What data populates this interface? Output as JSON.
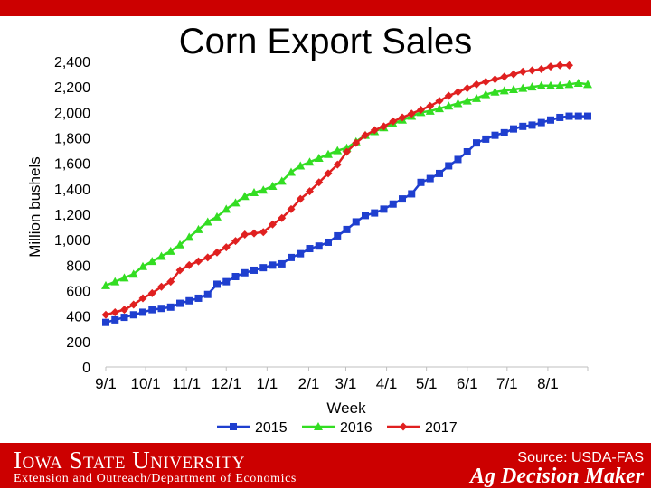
{
  "header": {
    "title": "Corn Export Sales"
  },
  "footer": {
    "university": "Iowa State University",
    "department": "Extension and Outreach/Department of Economics",
    "source": "Source: USDA-FAS",
    "brand": "Ag Decision Maker"
  },
  "colors": {
    "banner": "#cc0000",
    "s2015": "#1f3fcf",
    "s2016": "#33dd22",
    "s2017": "#e02020"
  },
  "chart_data": {
    "type": "line",
    "title": "Corn Export Sales",
    "xlabel": "Week",
    "ylabel": "Million bushels",
    "ylim": [
      0,
      2400
    ],
    "yticks": [
      0,
      200,
      400,
      600,
      800,
      1000,
      1200,
      1400,
      1600,
      1800,
      2000,
      2200,
      2400
    ],
    "ytick_labels": [
      "0",
      "200",
      "400",
      "600",
      "800",
      "1,000",
      "1,200",
      "1,400",
      "1,600",
      "1,800",
      "2,000",
      "2,200",
      "2,400"
    ],
    "xtick_labels": [
      "9/1",
      "10/1",
      "11/1",
      "12/1",
      "1/1",
      "2/1",
      "3/1",
      "4/1",
      "5/1",
      "6/1",
      "7/1",
      "8/1"
    ],
    "xtick_weeks": [
      0,
      4.3,
      8.7,
      13,
      17.4,
      21.9,
      25.9,
      30.3,
      34.6,
      39,
      43.3,
      47.7
    ],
    "xlim": [
      0,
      52
    ],
    "grid": false,
    "legend_position": "bottom",
    "series": [
      {
        "name": "2015",
        "marker": "square",
        "values": [
          350,
          370,
          390,
          410,
          430,
          450,
          460,
          470,
          500,
          520,
          540,
          570,
          650,
          670,
          710,
          740,
          760,
          780,
          800,
          810,
          860,
          890,
          930,
          950,
          980,
          1030,
          1080,
          1140,
          1190,
          1210,
          1240,
          1280,
          1320,
          1360,
          1450,
          1480,
          1520,
          1580,
          1630,
          1690,
          1760,
          1790,
          1820,
          1840,
          1870,
          1890,
          1900,
          1920,
          1940,
          1960,
          1970,
          1970,
          1970
        ]
      },
      {
        "name": "2016",
        "marker": "triangle",
        "values": [
          640,
          670,
          700,
          730,
          790,
          830,
          870,
          910,
          960,
          1020,
          1080,
          1140,
          1180,
          1240,
          1290,
          1340,
          1370,
          1390,
          1420,
          1460,
          1530,
          1580,
          1610,
          1640,
          1670,
          1700,
          1720,
          1770,
          1820,
          1850,
          1880,
          1910,
          1940,
          1970,
          2000,
          2010,
          2030,
          2050,
          2070,
          2090,
          2110,
          2140,
          2160,
          2170,
          2180,
          2190,
          2200,
          2210,
          2210,
          2210,
          2220,
          2230,
          2220
        ]
      },
      {
        "name": "2017",
        "marker": "diamond",
        "values": [
          410,
          430,
          450,
          490,
          540,
          580,
          630,
          670,
          760,
          800,
          830,
          860,
          900,
          940,
          990,
          1040,
          1050,
          1060,
          1120,
          1170,
          1240,
          1320,
          1380,
          1450,
          1520,
          1590,
          1690,
          1760,
          1820,
          1860,
          1890,
          1930,
          1960,
          1990,
          2020,
          2050,
          2090,
          2130,
          2160,
          2190,
          2220,
          2240,
          2260,
          2280,
          2300,
          2320,
          2330,
          2340,
          2360,
          2370,
          2370
        ]
      }
    ]
  }
}
